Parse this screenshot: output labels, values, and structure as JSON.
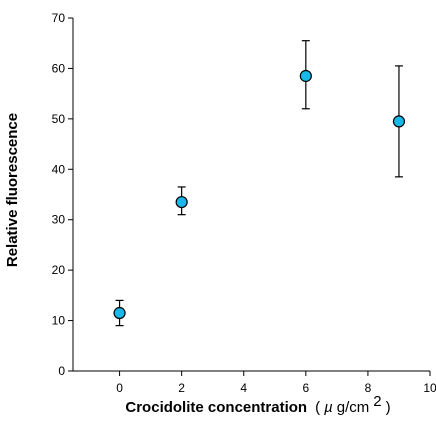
{
  "chart_data": {
    "type": "scatter",
    "title": "",
    "xlabel": "Crocidolite concentration",
    "xlabel_unit_open": "(",
    "xlabel_unit_mu": "µ",
    "xlabel_unit_rest": "g/cm",
    "xlabel_unit_sup": "2",
    "xlabel_unit_close": ")",
    "ylabel": "Relative fluorescence",
    "xlim": [
      -1.5,
      10
    ],
    "ylim": [
      0,
      70
    ],
    "x_ticks": [
      0,
      2,
      4,
      6,
      8,
      10
    ],
    "y_ticks": [
      0,
      10,
      20,
      30,
      40,
      50,
      60,
      70
    ],
    "grid": false,
    "marker_color": "#1ab8e8",
    "points": [
      {
        "x": 0,
        "y": 11.5,
        "err_low": 9.0,
        "err_high": 14.0
      },
      {
        "x": 2,
        "y": 33.5,
        "err_low": 31.0,
        "err_high": 36.5
      },
      {
        "x": 6,
        "y": 58.5,
        "err_low": 52.0,
        "err_high": 65.5
      },
      {
        "x": 9,
        "y": 49.5,
        "err_low": 38.5,
        "err_high": 60.5
      }
    ]
  }
}
